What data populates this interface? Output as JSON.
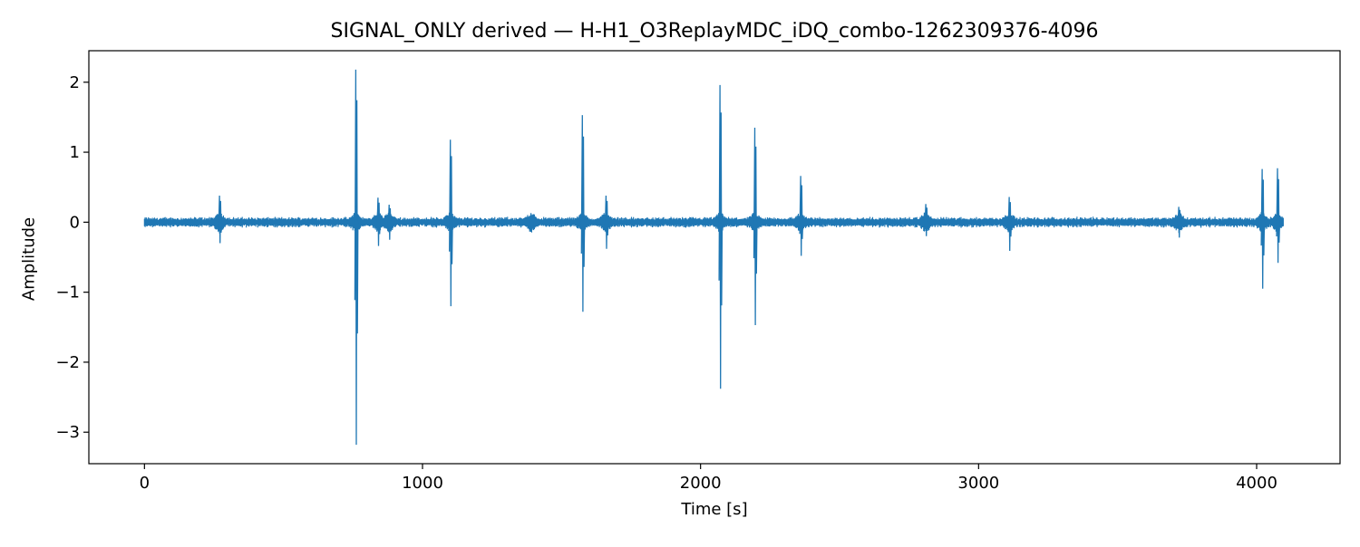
{
  "chart_data": {
    "type": "line",
    "title": "SIGNAL_ONLY derived — H-H1_O3ReplayMDC_iDQ_combo-1262309376-4096",
    "xlabel": "Time [s]",
    "ylabel": "Amplitude",
    "xlim": [
      -200,
      4300
    ],
    "ylim": [
      -3.45,
      2.45
    ],
    "x_ticks": [
      0,
      1000,
      2000,
      3000,
      4000
    ],
    "x_tick_labels": [
      "0",
      "1000",
      "2000",
      "3000",
      "4000"
    ],
    "y_ticks": [
      -3,
      -2,
      -1,
      0,
      1,
      2
    ],
    "y_tick_labels": [
      "−3",
      "−2",
      "−1",
      "0",
      "1",
      "2"
    ],
    "grid": false,
    "legend": "none",
    "series": [
      {
        "color": "#1f77b4",
        "x": [
          0,
          4096
        ],
        "y_range": [
          -0.1,
          0.1
        ],
        "spikes": [
          {
            "t": 270,
            "max": 0.38,
            "min": -0.3
          },
          {
            "t": 760,
            "max": 2.18,
            "min": -3.18
          },
          {
            "t": 840,
            "max": 0.35,
            "min": -0.34
          },
          {
            "t": 880,
            "max": 0.25,
            "min": -0.25
          },
          {
            "t": 1100,
            "max": 1.18,
            "min": -1.2
          },
          {
            "t": 1390,
            "max": 0.12,
            "min": -0.1
          },
          {
            "t": 1575,
            "max": 1.53,
            "min": -1.28
          },
          {
            "t": 1660,
            "max": 0.38,
            "min": -0.38
          },
          {
            "t": 2070,
            "max": 1.96,
            "min": -2.38
          },
          {
            "t": 2195,
            "max": 1.35,
            "min": -1.47
          },
          {
            "t": 2360,
            "max": 0.66,
            "min": -0.48
          },
          {
            "t": 2810,
            "max": 0.26,
            "min": -0.2
          },
          {
            "t": 3110,
            "max": 0.36,
            "min": -0.41
          },
          {
            "t": 3720,
            "max": 0.22,
            "min": -0.22
          },
          {
            "t": 4020,
            "max": 0.76,
            "min": -0.95
          },
          {
            "t": 4075,
            "max": 0.77,
            "min": -0.58
          }
        ]
      }
    ]
  }
}
